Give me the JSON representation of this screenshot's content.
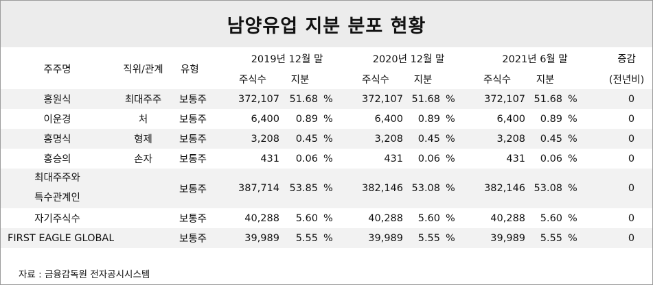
{
  "title": "남양유업 지분 분포 현황",
  "header": {
    "col_shareholder": "주주명",
    "col_relation": "직위/관계",
    "col_type": "유형",
    "period1": "2019년 12월 말",
    "period2": "2020년 12월 말",
    "period3": "2021년 6월 말",
    "col_change": "증감",
    "col_change_sub": "(전년비)",
    "sub_shares": "주식수",
    "sub_stake": "지분"
  },
  "rows": [
    {
      "name": "홍원식",
      "relation": "최대주주",
      "type": "보통주",
      "s1": "372,107",
      "p1": "51.68",
      "s2": "372,107",
      "p2": "51.68",
      "s3": "372,107",
      "p3": "51.68",
      "change": "0"
    },
    {
      "name": "이운경",
      "relation": "처",
      "type": "보통주",
      "s1": "6,400",
      "p1": "0.89",
      "s2": "6,400",
      "p2": "0.89",
      "s3": "6,400",
      "p3": "0.89",
      "change": "0"
    },
    {
      "name": "홍명식",
      "relation": "형제",
      "type": "보통주",
      "s1": "3,208",
      "p1": "0.45",
      "s2": "3,208",
      "p2": "0.45",
      "s3": "3,208",
      "p3": "0.45",
      "change": "0"
    },
    {
      "name": "홍승의",
      "relation": "손자",
      "type": "보통주",
      "s1": "431",
      "p1": "0.06",
      "s2": "431",
      "p2": "0.06",
      "s3": "431",
      "p3": "0.06",
      "change": "0"
    },
    {
      "name_line1": "최대주주와",
      "name_line2": "특수관계인",
      "relation": "",
      "type": "보통주",
      "s1": "387,714",
      "p1": "53.85",
      "s2": "382,146",
      "p2": "53.08",
      "s3": "382,146",
      "p3": "53.08",
      "change": "0"
    },
    {
      "name": "자기주식수",
      "relation": "",
      "type": "보통주",
      "s1": "40,288",
      "p1": "5.60",
      "s2": "40,288",
      "p2": "5.60",
      "s3": "40,288",
      "p3": "5.60",
      "change": "0"
    },
    {
      "name": "FIRST EAGLE GLOBAL",
      "relation": "",
      "type": "보통주",
      "s1": "39,989",
      "p1": "5.55",
      "s2": "39,989",
      "p2": "5.55",
      "s3": "39,989",
      "p3": "5.55",
      "change": "0"
    }
  ],
  "pct_unit": "%",
  "source": "자료 : 금융감독원 전자공시시스템"
}
